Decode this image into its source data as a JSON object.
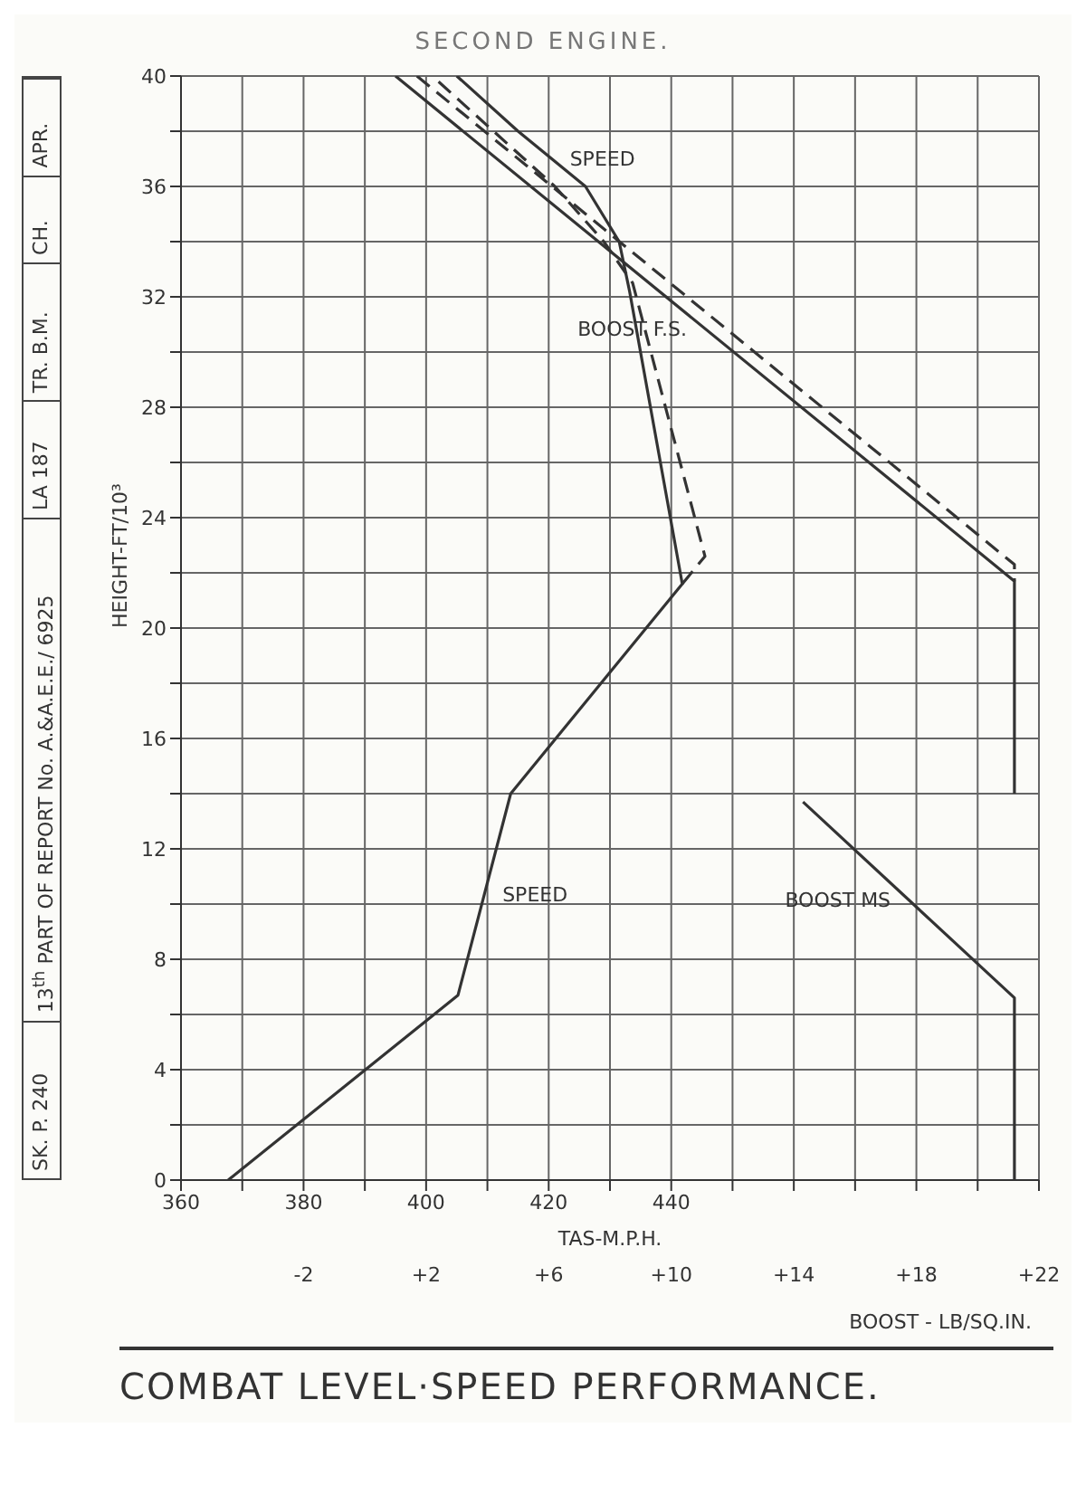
{
  "chart_data": {
    "type": "line",
    "title": "COMBAT LEVEL·SPEED PERFORMANCE.",
    "subtitle": "SECOND ENGINE.",
    "xlabel": "TAS-M.P.H.",
    "x2label": "BOOST - LB/SQ.IN.",
    "ylabel": "HEIGHT-FT/10³",
    "xlim": [
      360,
      500
    ],
    "xticks": [
      360,
      {
        "value": 370,
        "label": null
      },
      380,
      {
        "value": 390,
        "label": null
      },
      400,
      {
        "value": 410,
        "label": null
      },
      420,
      {
        "value": 430,
        "label": null
      },
      440,
      {
        "value": 450,
        "label": null
      },
      {
        "value": 460,
        "label": null
      },
      {
        "value": 470,
        "label": null
      },
      {
        "value": 480,
        "label": null
      },
      {
        "value": 490,
        "label": null
      },
      {
        "value": 500,
        "label": null
      }
    ],
    "x2lim": [
      -6,
      22
    ],
    "x2ticks": [
      -2,
      {
        "value": 2,
        "label": "+2"
      },
      {
        "value": 6,
        "label": "+6"
      },
      {
        "value": 10,
        "label": "+10"
      },
      {
        "value": 14,
        "label": "+14"
      },
      {
        "value": 18,
        "label": "+18"
      },
      {
        "value": 22,
        "label": "+22"
      }
    ],
    "ylim": [
      0,
      40
    ],
    "yticks": [
      0,
      {
        "value": 2,
        "label": null
      },
      4,
      {
        "value": 6,
        "label": null
      },
      8,
      {
        "value": 10,
        "label": null
      },
      12,
      {
        "value": 14,
        "label": null
      },
      16,
      {
        "value": 18,
        "label": null
      },
      20,
      {
        "value": 22,
        "label": null
      },
      24,
      {
        "value": 26,
        "label": null
      },
      28,
      {
        "value": 30,
        "label": null
      },
      32,
      {
        "value": 34,
        "label": null
      },
      36,
      {
        "value": 38,
        "label": null
      },
      40
    ],
    "grid": true,
    "marker": "none",
    "series": [
      {
        "name": "SPEED",
        "color": "#333333",
        "line_style": "solid",
        "x": [
          367.7,
          405.2,
          413.8,
          441.8,
          433.2,
          431.5,
          426,
          415,
          405
        ],
        "values": [
          0,
          6.7,
          14,
          21.6,
          32.2,
          34,
          36,
          38,
          40
        ]
      },
      {
        "color": "#333333",
        "line_style": "dashed",
        "x": [
          441.8,
          445.5,
          433.7,
          429,
          421,
          411,
          401
        ],
        "values": [
          21.6,
          22.6,
          32.5,
          34,
          36,
          38,
          40
        ]
      },
      {
        "name": "BOOST F.S.",
        "color": "#333333",
        "line_style": "solid",
        "axis": "x2",
        "x": [
          1.0,
          21.2,
          21.2
        ],
        "values": [
          40,
          21.7,
          14
        ]
      },
      {
        "color": "#333333",
        "line_style": "dashed",
        "axis": "x2",
        "x": [
          1.7,
          21.2,
          21.2
        ],
        "values": [
          40,
          22.3,
          21.7
        ]
      },
      {
        "name": "BOOST MS",
        "color": "#333333",
        "line_style": "solid",
        "axis": "x2",
        "x": [
          14.3,
          21.2,
          21.2
        ],
        "values": [
          13.7,
          6.6,
          0
        ]
      }
    ],
    "annotations": [
      "SK. P. 240",
      "13$^{th}$ PART OF REPORT No. A.&A.E.E./ 6925",
      "LA 187",
      "TR. B.M.",
      "CH.",
      "APR."
    ]
  }
}
